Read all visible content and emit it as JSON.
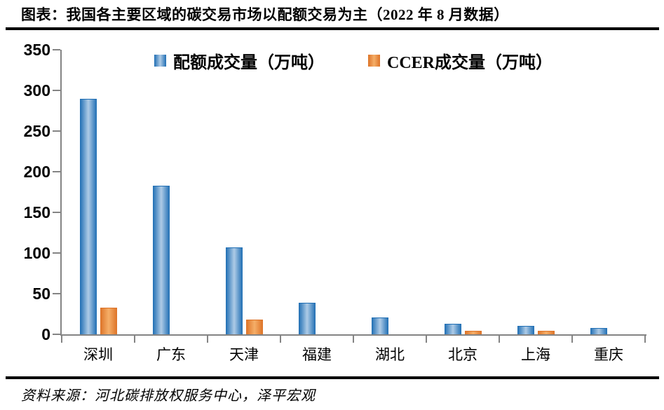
{
  "title": "图表：我国各主要区域的碳交易市场以配额交易为主（2022 年 8 月数据）",
  "source": "资料来源：河北碳排放权服务中心，泽平宏观",
  "colors": {
    "divider": "#000000",
    "axis": "#848484",
    "quota_edge": "#1f6eb4",
    "quota_mid": "#aecbe6",
    "ccer_edge": "#dd7327",
    "ccer_mid": "#f5ae68"
  },
  "chart_data": {
    "type": "bar",
    "title": "图表：我国各主要区域的碳交易市场以配额交易为主（2022 年 8 月数据）",
    "categories": [
      "深圳",
      "广东",
      "天津",
      "福建",
      "湖北",
      "北京",
      "上海",
      "重庆"
    ],
    "series": [
      {
        "name": "配额成交量（万吨）",
        "color_edge": "#1f6eb4",
        "color_mid": "#aecbe6",
        "values": [
          290,
          183,
          107,
          39,
          21,
          13,
          10,
          8
        ]
      },
      {
        "name": "CCER成交量（万吨）",
        "color_edge": "#dd7327",
        "color_mid": "#f5ae68",
        "values": [
          33,
          0,
          18,
          0,
          0,
          4,
          4,
          0
        ]
      }
    ],
    "xlabel": "",
    "ylabel": "",
    "ylim": [
      0,
      350
    ],
    "yticks": [
      0,
      50,
      100,
      150,
      200,
      250,
      300,
      350
    ],
    "grid": false,
    "legend_position": "top-center"
  }
}
